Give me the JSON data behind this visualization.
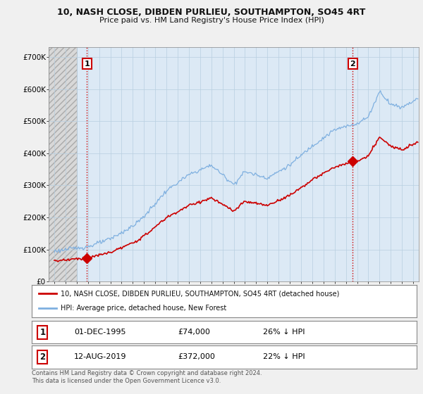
{
  "title_line1": "10, NASH CLOSE, DIBDEN PURLIEU, SOUTHAMPTON, SO45 4RT",
  "title_line2": "Price paid vs. HM Land Registry's House Price Index (HPI)",
  "background_color": "#f0f0f0",
  "plot_bg_color": "#dce9f5",
  "red_line_color": "#cc0000",
  "blue_line_color": "#7fb0e0",
  "marker_color": "#cc0000",
  "annotation_box_edgecolor": "#cc0000",
  "annotation_box_facecolor": "#ffffff",
  "annotation_text_color": "#000000",
  "transaction1": {
    "date_year": 1995.92,
    "price": 74000,
    "label": "1"
  },
  "transaction2": {
    "date_year": 2019.62,
    "price": 372000,
    "label": "2"
  },
  "legend1": "10, NASH CLOSE, DIBDEN PURLIEU, SOUTHAMPTON, SO45 4RT (detached house)",
  "legend2": "HPI: Average price, detached house, New Forest",
  "table1_date": "01-DEC-1995",
  "table1_price": "£74,000",
  "table1_hpi": "26% ↓ HPI",
  "table2_date": "12-AUG-2019",
  "table2_price": "£372,000",
  "table2_hpi": "22% ↓ HPI",
  "footer": "Contains HM Land Registry data © Crown copyright and database right 2024.\nThis data is licensed under the Open Government Licence v3.0.",
  "ylim": [
    0,
    730000
  ],
  "yticks": [
    0,
    100000,
    200000,
    300000,
    400000,
    500000,
    600000,
    700000
  ],
  "ytick_labels": [
    "£0",
    "£100K",
    "£200K",
    "£300K",
    "£400K",
    "£500K",
    "£600K",
    "£700K"
  ],
  "xlim_start": 1992.5,
  "xlim_end": 2025.5,
  "hatch_end": 1995.0,
  "xtick_start": 1993,
  "xtick_end": 2025
}
